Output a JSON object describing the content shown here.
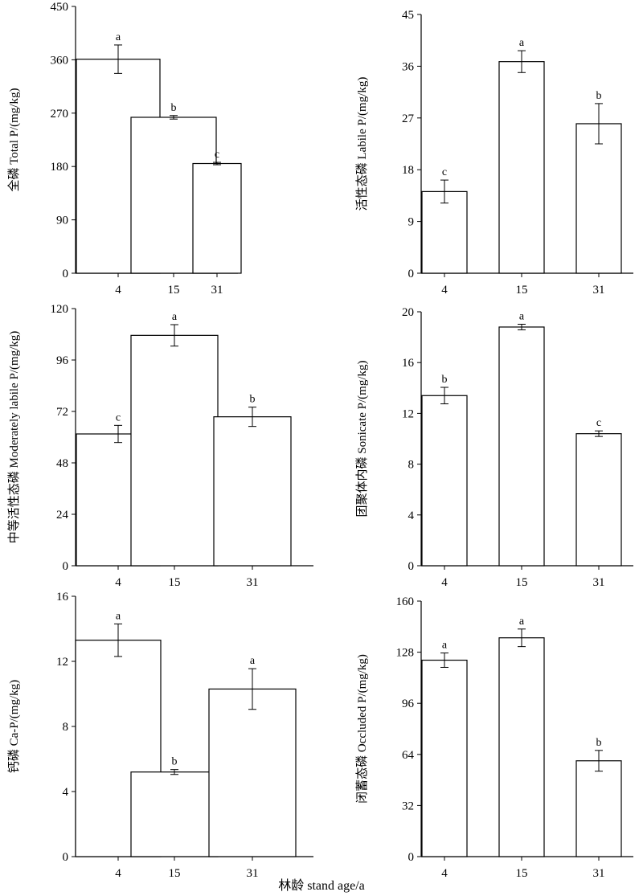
{
  "figure": {
    "xlabel": "林龄 stand age/a"
  },
  "chart_data": [
    {
      "type": "bar",
      "ylabel": "全磷 Total P/(mg/kg)",
      "categories": [
        "4",
        "15",
        "31"
      ],
      "values": [
        361,
        263,
        185
      ],
      "errors": [
        24,
        3,
        2
      ],
      "letters": [
        "a",
        "b",
        "c"
      ],
      "ylim": [
        0,
        450
      ],
      "yticks": [
        0,
        90,
        180,
        270,
        360,
        450
      ]
    },
    {
      "type": "bar",
      "ylabel": "活性态磷 Labile P/(mg/kg)",
      "categories": [
        "4",
        "15",
        "31"
      ],
      "values": [
        14.2,
        36.8,
        26.0
      ],
      "errors": [
        2.0,
        1.9,
        3.5
      ],
      "letters": [
        "c",
        "a",
        "b"
      ],
      "ylim": [
        0,
        45
      ],
      "yticks": [
        0,
        9,
        18,
        27,
        36,
        45
      ]
    },
    {
      "type": "bar",
      "ylabel": "中等活性态磷 Moderately labile P/(mg/kg)",
      "categories": [
        "4",
        "15",
        "31"
      ],
      "values": [
        61.5,
        107.5,
        69.5
      ],
      "errors": [
        4.0,
        5.0,
        4.5
      ],
      "letters": [
        "c",
        "a",
        "b"
      ],
      "ylim": [
        0,
        120
      ],
      "yticks": [
        0,
        24,
        48,
        72,
        96,
        120
      ]
    },
    {
      "type": "bar",
      "ylabel": "团聚体内磷 Sonicate P/(mg/kg)",
      "categories": [
        "4",
        "15",
        "31"
      ],
      "values": [
        13.4,
        18.8,
        10.4
      ],
      "errors": [
        0.65,
        0.22,
        0.22
      ],
      "letters": [
        "b",
        "a",
        "c"
      ],
      "ylim": [
        0,
        20
      ],
      "yticks": [
        0,
        4,
        8,
        12,
        16,
        20
      ]
    },
    {
      "type": "bar",
      "ylabel": "钙磷 Ca-P/(mg/kg)",
      "categories": [
        "4",
        "15",
        "31"
      ],
      "values": [
        13.3,
        5.2,
        10.3
      ],
      "errors": [
        1.0,
        0.15,
        1.25
      ],
      "letters": [
        "a",
        "b",
        "a"
      ],
      "ylim": [
        0,
        16
      ],
      "yticks": [
        0,
        4,
        8,
        12,
        16
      ]
    },
    {
      "type": "bar",
      "ylabel": "闭蓄态磷 Occluded P/(mg/kg)",
      "categories": [
        "4",
        "15",
        "31"
      ],
      "values": [
        123,
        137,
        60
      ],
      "errors": [
        4.5,
        5.5,
        6.5
      ],
      "letters": [
        "a",
        "a",
        "b"
      ],
      "ylim": [
        0,
        160
      ],
      "yticks": [
        0,
        32,
        64,
        96,
        128,
        160
      ]
    }
  ]
}
